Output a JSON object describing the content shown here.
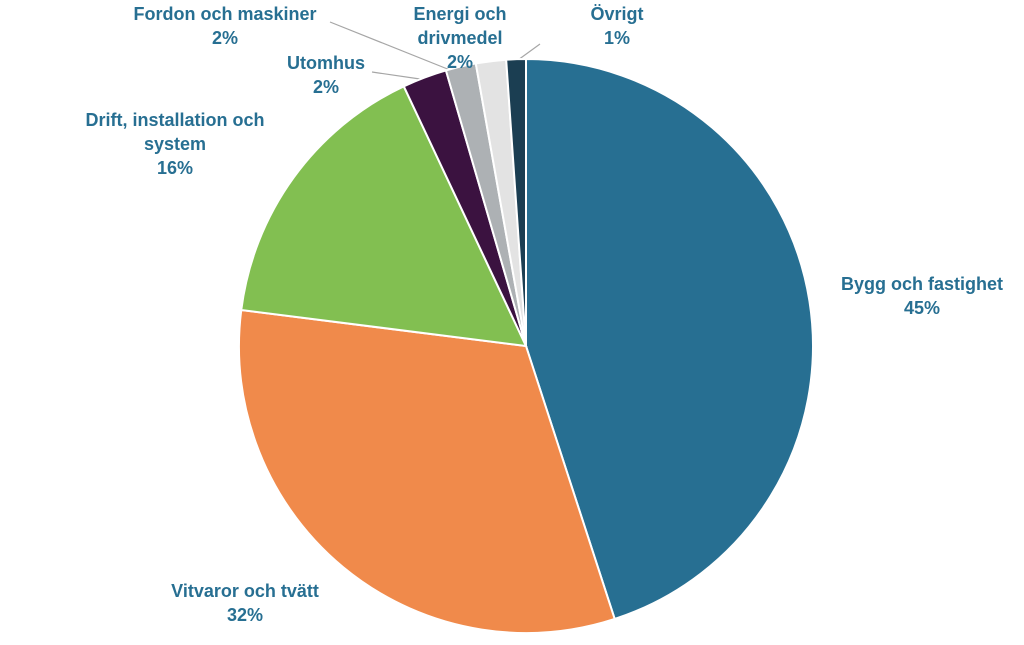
{
  "chart_data": {
    "type": "pie",
    "title": "",
    "slices": [
      {
        "name": "Bygg och fastighet",
        "label_lines": [
          "Bygg och fastighet"
        ],
        "value": 45,
        "pct_label": "45%",
        "color": "#276f92"
      },
      {
        "name": "Vitvaror och tvätt",
        "label_lines": [
          "Vitvaror och tvätt"
        ],
        "value": 32,
        "pct_label": "32%",
        "color": "#f08a4b"
      },
      {
        "name": "Drift, installation och system",
        "label_lines": [
          "Drift, installation och",
          "system"
        ],
        "value": 16,
        "pct_label": "16%",
        "color": "#82bf51"
      },
      {
        "name": "Utomhus",
        "label_lines": [
          "Utomhus"
        ],
        "value": 2.5,
        "pct_label": "2%",
        "color": "#3b1240"
      },
      {
        "name": "Fordon och maskiner",
        "label_lines": [
          "Fordon och maskiner"
        ],
        "value": 1.7,
        "pct_label": "2%",
        "color": "#adb1b4"
      },
      {
        "name": "Energi och drivmedel",
        "label_lines": [
          "Energi och",
          "drivmedel"
        ],
        "value": 1.7,
        "pct_label": "2%",
        "color": "#e3e3e3"
      },
      {
        "name": "Övrigt",
        "label_lines": [
          "Övrigt"
        ],
        "value": 1.1,
        "pct_label": "1%",
        "color": "#1b3e52"
      }
    ],
    "label_color": "#276f92",
    "leader_line_color": "#a6a6a6"
  }
}
